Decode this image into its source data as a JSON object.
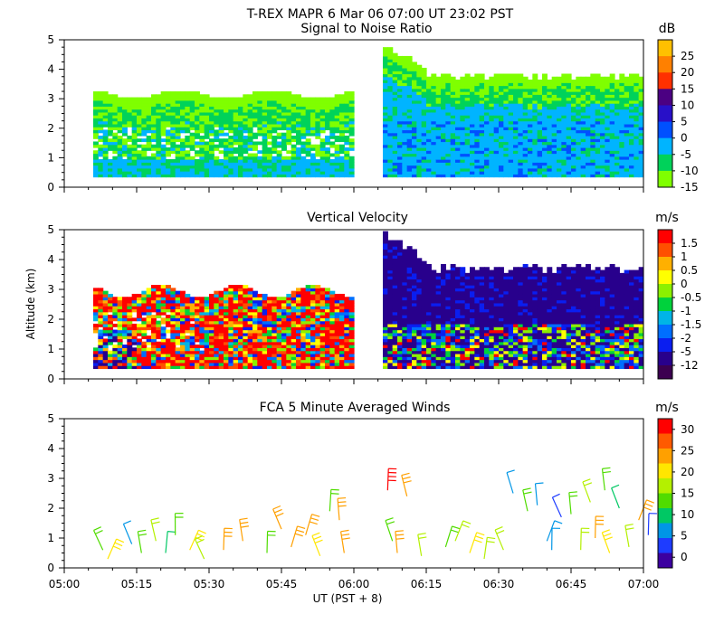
{
  "header": {
    "title": "T-REX   MAPR   6 Mar 06   07:00 UT   23:02   PST"
  },
  "chart_data": [
    {
      "type": "heatmap",
      "title": "Signal to Noise Ratio",
      "ylabel": "",
      "ylim": [
        0,
        5
      ],
      "yticks": [
        "0",
        "1",
        "2",
        "3",
        "4",
        "5"
      ],
      "colorbar": {
        "unit": "dB",
        "labels": [
          "25",
          "20",
          "15",
          "10",
          "5",
          "0",
          "-5",
          "-10",
          "-15"
        ],
        "colors": [
          "#ffc000",
          "#ff8000",
          "#ff3000",
          "#4b0082",
          "#2810c8",
          "#0050ff",
          "#00b4ff",
          "#00d25a",
          "#7fff00"
        ]
      },
      "gap_minutes": [
        60,
        66
      ]
    },
    {
      "type": "heatmap",
      "title": "Vertical Velocity",
      "ylabel": "Altitude (km)",
      "ylim": [
        0,
        5
      ],
      "yticks": [
        "0",
        "1",
        "2",
        "3",
        "4",
        "5"
      ],
      "colorbar": {
        "unit": "m/s",
        "labels": [
          "1.5",
          "1",
          "0.5",
          "0",
          "-0.5",
          "-1",
          "-1.5",
          "-2",
          "-5",
          "-12"
        ],
        "colors": [
          "#ff0000",
          "#ff5000",
          "#ffb000",
          "#ffff00",
          "#8cf000",
          "#00d23c",
          "#00b4e6",
          "#006eff",
          "#0a1ef0",
          "#28008c",
          "#3c0050"
        ]
      },
      "gap_minutes": [
        60,
        66
      ]
    },
    {
      "type": "scatter",
      "title": "FCA 5 Minute Averaged Winds",
      "xlabel": "UT  (PST + 8)",
      "xlim": [
        "05:00",
        "07:00"
      ],
      "xticks": [
        "05:00",
        "05:15",
        "05:30",
        "05:45",
        "06:00",
        "06:15",
        "06:30",
        "06:45",
        "07:00"
      ],
      "ylim": [
        0,
        5
      ],
      "yticks": [
        "0",
        "1",
        "2",
        "3",
        "4",
        "5"
      ],
      "colorbar": {
        "unit": "m/s",
        "labels": [
          "30",
          "25",
          "20",
          "15",
          "10",
          "5",
          "0"
        ],
        "colors": [
          "#ff0000",
          "#ff5a00",
          "#ffa000",
          "#ffe600",
          "#b4f000",
          "#50dc00",
          "#00c864",
          "#0096e6",
          "#1e3cff",
          "#3c00a0"
        ]
      },
      "wind_barbs": [
        {
          "t": 8,
          "alt": 0.6,
          "speed": 15
        },
        {
          "t": 9,
          "alt": 0.3,
          "speed": 20
        },
        {
          "t": 14,
          "alt": 0.8,
          "speed": 8
        },
        {
          "t": 16,
          "alt": 0.5,
          "speed": 12
        },
        {
          "t": 19,
          "alt": 0.9,
          "speed": 18
        },
        {
          "t": 21,
          "alt": 0.5,
          "speed": 10
        },
        {
          "t": 23,
          "alt": 1.1,
          "speed": 14
        },
        {
          "t": 26,
          "alt": 0.6,
          "speed": 20
        },
        {
          "t": 29,
          "alt": 0.3,
          "speed": 16
        },
        {
          "t": 33,
          "alt": 0.6,
          "speed": 25
        },
        {
          "t": 37,
          "alt": 0.9,
          "speed": 22
        },
        {
          "t": 42,
          "alt": 0.5,
          "speed": 12
        },
        {
          "t": 45,
          "alt": 1.3,
          "speed": 25
        },
        {
          "t": 47,
          "alt": 0.7,
          "speed": 22
        },
        {
          "t": 50,
          "alt": 1.1,
          "speed": 24
        },
        {
          "t": 53,
          "alt": 0.4,
          "speed": 20
        },
        {
          "t": 55,
          "alt": 1.9,
          "speed": 15
        },
        {
          "t": 57,
          "alt": 1.6,
          "speed": 22
        },
        {
          "t": 58,
          "alt": 0.5,
          "speed": 25
        },
        {
          "t": 67,
          "alt": 2.6,
          "speed": 30
        },
        {
          "t": 68,
          "alt": 0.9,
          "speed": 12
        },
        {
          "t": 69,
          "alt": 0.5,
          "speed": 25
        },
        {
          "t": 71,
          "alt": 2.4,
          "speed": 24
        },
        {
          "t": 74,
          "alt": 0.4,
          "speed": 16
        },
        {
          "t": 79,
          "alt": 0.7,
          "speed": 15
        },
        {
          "t": 81,
          "alt": 0.9,
          "speed": 18
        },
        {
          "t": 84,
          "alt": 0.5,
          "speed": 20
        },
        {
          "t": 87,
          "alt": 0.3,
          "speed": 18
        },
        {
          "t": 91,
          "alt": 0.6,
          "speed": 18
        },
        {
          "t": 93,
          "alt": 2.5,
          "speed": 8
        },
        {
          "t": 96,
          "alt": 1.9,
          "speed": 14
        },
        {
          "t": 98,
          "alt": 2.1,
          "speed": 8
        },
        {
          "t": 100,
          "alt": 0.9,
          "speed": 6
        },
        {
          "t": 101,
          "alt": 0.6,
          "speed": 8
        },
        {
          "t": 103,
          "alt": 1.7,
          "speed": 4
        },
        {
          "t": 105,
          "alt": 1.8,
          "speed": 12
        },
        {
          "t": 107,
          "alt": 0.6,
          "speed": 18
        },
        {
          "t": 109,
          "alt": 2.2,
          "speed": 16
        },
        {
          "t": 110,
          "alt": 1.0,
          "speed": 22
        },
        {
          "t": 112,
          "alt": 2.6,
          "speed": 12
        },
        {
          "t": 113,
          "alt": 0.5,
          "speed": 20
        },
        {
          "t": 115,
          "alt": 2.0,
          "speed": 10
        },
        {
          "t": 117,
          "alt": 0.7,
          "speed": 18
        },
        {
          "t": 119,
          "alt": 1.6,
          "speed": 22
        },
        {
          "t": 121,
          "alt": 1.1,
          "speed": 5
        }
      ]
    }
  ]
}
